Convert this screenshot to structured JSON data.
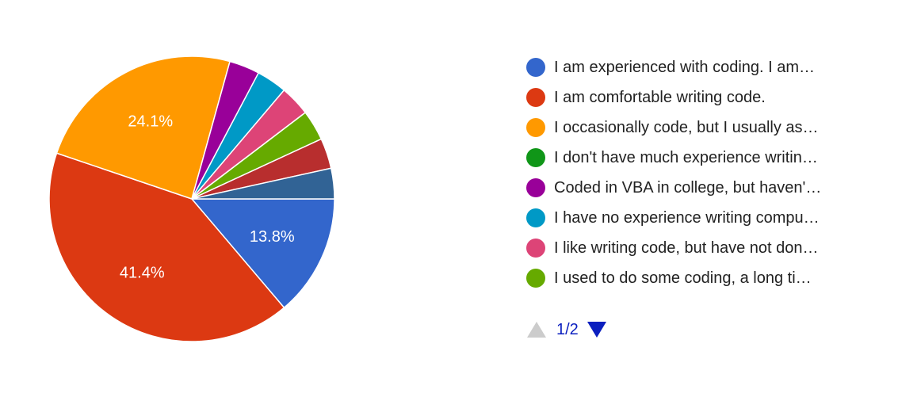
{
  "chart_data": {
    "type": "pie",
    "slices": [
      {
        "label": "I am experienced with coding. I am…",
        "value": 13.8,
        "color": "#3366cc",
        "display": "13.8%"
      },
      {
        "label": "I am comfortable writing code.",
        "value": 41.4,
        "color": "#dc3912",
        "display": "41.4%"
      },
      {
        "label": "I occasionally code, but I usually as…",
        "value": 24.1,
        "color": "#ff9900",
        "display": "24.1%"
      },
      {
        "label": "I don't have much experience writin…",
        "value": 0,
        "color": "#109618",
        "display": ""
      },
      {
        "label": "Coded in VBA in college, but haven'…",
        "value": 3.45,
        "color": "#990099",
        "display": ""
      },
      {
        "label": "I have no experience writing compu…",
        "value": 3.45,
        "color": "#0099c6",
        "display": ""
      },
      {
        "label": "I like writing code, but have not don…",
        "value": 3.45,
        "color": "#dd4477",
        "display": ""
      },
      {
        "label": "I used to do some coding, a long ti…",
        "value": 3.45,
        "color": "#66aa00",
        "display": ""
      },
      {
        "label": "",
        "value": 3.45,
        "color": "#b82e2e",
        "display": ""
      },
      {
        "label": "",
        "value": 3.45,
        "color": "#316395",
        "display": ""
      }
    ],
    "legend": "right"
  },
  "pager": {
    "text": "1/2"
  }
}
